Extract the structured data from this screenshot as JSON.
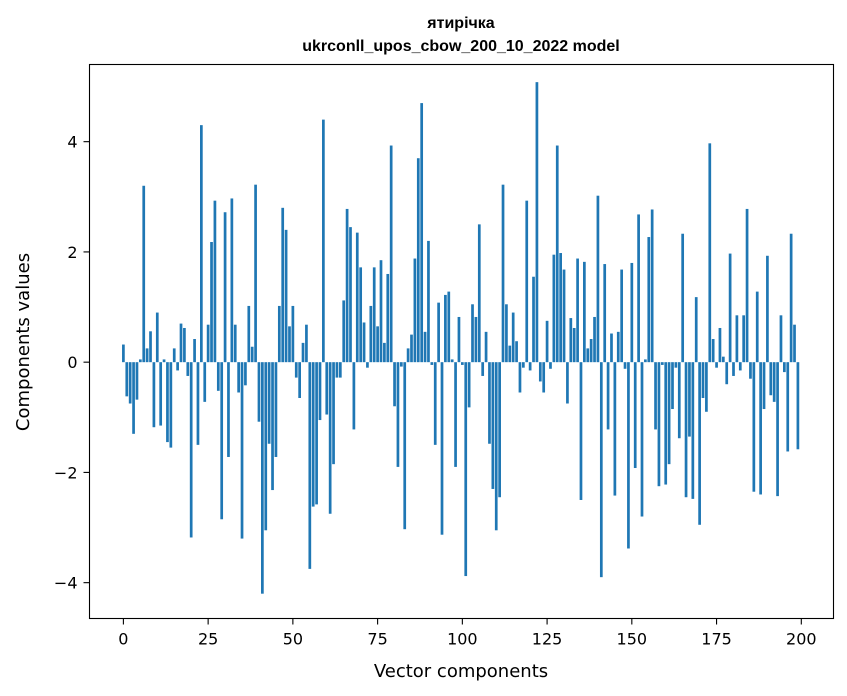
{
  "chart_data": {
    "type": "bar",
    "title_line1": "ятирічка",
    "title_line2": "ukrconll_upos_cbow_200_10_2022 model",
    "xlabel": "Vector components",
    "ylabel": "Components values",
    "xlim": [
      -10,
      209.5
    ],
    "ylim": [
      -4.65,
      5.4
    ],
    "xticks": [
      0,
      25,
      50,
      75,
      100,
      125,
      150,
      175,
      200
    ],
    "xtick_labels": [
      "0",
      "25",
      "50",
      "75",
      "100",
      "125",
      "150",
      "175",
      "200"
    ],
    "yticks": [
      -4,
      -2,
      0,
      2,
      4
    ],
    "ytick_labels": [
      "−4",
      "−2",
      "0",
      "2",
      "4"
    ],
    "bar_color": "#1f77b4",
    "values": [
      0.32,
      -0.62,
      -0.75,
      -1.3,
      -0.68,
      0.05,
      3.2,
      0.25,
      0.56,
      -1.18,
      0.9,
      -1.15,
      0.05,
      -1.45,
      -1.55,
      0.25,
      -0.15,
      0.7,
      0.62,
      -0.25,
      -3.18,
      0.42,
      -1.5,
      4.3,
      -0.72,
      0.68,
      2.18,
      2.93,
      -0.52,
      -2.85,
      2.72,
      -1.72,
      2.97,
      0.68,
      -0.55,
      -3.2,
      -0.42,
      1.02,
      0.28,
      3.22,
      -1.08,
      -4.2,
      -3.05,
      -1.48,
      -2.32,
      -1.72,
      1.02,
      2.8,
      2.4,
      0.65,
      1.02,
      -0.28,
      -0.65,
      0.35,
      0.68,
      -3.75,
      -2.62,
      -2.58,
      -1.05,
      4.4,
      -0.95,
      -2.75,
      -1.85,
      -0.28,
      -0.28,
      1.12,
      2.78,
      2.45,
      -1.22,
      2.35,
      1.72,
      0.72,
      -0.1,
      1.02,
      1.72,
      0.65,
      1.85,
      0.35,
      1.6,
      3.93,
      -0.8,
      -1.9,
      -0.08,
      -3.03,
      0.25,
      0.5,
      1.88,
      3.7,
      4.7,
      0.55,
      2.2,
      -0.05,
      -1.5,
      1.08,
      -3.13,
      1.22,
      1.28,
      0.05,
      -1.9,
      0.82,
      -0.05,
      -3.88,
      -0.82,
      1.05,
      0.82,
      2.5,
      -0.25,
      0.55,
      -1.48,
      -2.3,
      -3.05,
      -2.45,
      3.22,
      1.05,
      0.3,
      0.9,
      0.38,
      -0.55,
      -0.1,
      2.93,
      -0.15,
      1.55,
      5.08,
      -0.35,
      -0.55,
      0.75,
      -0.12,
      1.95,
      3.93,
      1.98,
      1.68,
      -0.75,
      0.8,
      0.62,
      1.88,
      -2.5,
      1.82,
      0.25,
      0.42,
      0.82,
      3.02,
      -3.9,
      1.78,
      -1.22,
      0.52,
      -2.42,
      0.55,
      1.68,
      -0.12,
      -3.38,
      1.8,
      -1.92,
      2.68,
      -2.8,
      0.05,
      2.27,
      2.77,
      -1.22,
      -2.25,
      -0.05,
      -2.22,
      -1.85,
      -0.85,
      -0.1,
      -1.38,
      2.33,
      -2.45,
      -1.35,
      -2.48,
      1.18,
      -2.95,
      -0.65,
      -0.9,
      3.97,
      0.42,
      -0.1,
      0.62,
      0.1,
      -0.4,
      1.97,
      -0.25,
      0.85,
      -0.15,
      0.85,
      2.78,
      -0.3,
      -2.35,
      1.28,
      -2.4,
      -0.85,
      1.93,
      -0.6,
      -0.72,
      -2.43,
      0.85,
      -0.18,
      -1.62,
      2.33,
      0.68,
      -1.58
    ]
  }
}
